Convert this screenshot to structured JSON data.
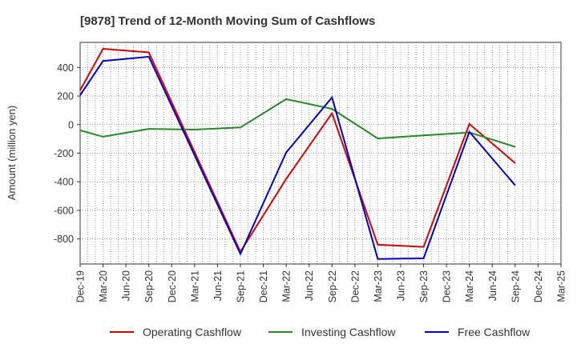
{
  "chart_data": {
    "type": "line",
    "title": "[9878]  Trend of 12-Month Moving Sum of Cashflows",
    "xlabel": "",
    "ylabel": "Amount (million yen)",
    "categories": [
      "Dec-19",
      "Mar-20",
      "Jun-20",
      "Sep-20",
      "Dec-20",
      "Mar-21",
      "Jun-21",
      "Sep-21",
      "Dec-21",
      "Mar-22",
      "Jun-22",
      "Sep-22",
      "Dec-22",
      "Mar-23",
      "Jun-23",
      "Sep-23",
      "Dec-23",
      "Mar-24",
      "Jun-24",
      "Sep-24",
      "Dec-24",
      "Mar-25"
    ],
    "ylim": [
      -975,
      575
    ],
    "yticks": [
      -800,
      -600,
      -400,
      -200,
      0,
      200,
      400
    ],
    "ytick_labels": [
      "-800",
      "-600",
      "-400",
      "-200",
      "0",
      "200",
      "400"
    ],
    "grid": true,
    "legend_position": "bottom",
    "series": [
      {
        "name": "Operating Cashflow",
        "color": "#dd0000",
        "values": [
          240,
          530,
          null,
          505,
          null,
          null,
          null,
          -890,
          null,
          -380,
          null,
          80,
          null,
          -840,
          null,
          -855,
          null,
          5,
          null,
          -270,
          null,
          null
        ]
      },
      {
        "name": "Investing Cashflow",
        "color": "#228b22",
        "values": [
          -40,
          -85,
          null,
          -30,
          null,
          -35,
          null,
          -20,
          null,
          178,
          null,
          110,
          null,
          -97,
          null,
          -75,
          null,
          -55,
          null,
          -155,
          null,
          null
        ]
      },
      {
        "name": "Free Cashflow",
        "color": "#0000cc",
        "values": [
          205,
          445,
          null,
          475,
          null,
          null,
          null,
          -905,
          null,
          -195,
          null,
          190,
          null,
          -940,
          null,
          -935,
          null,
          -50,
          null,
          -425,
          null,
          null
        ]
      }
    ]
  }
}
